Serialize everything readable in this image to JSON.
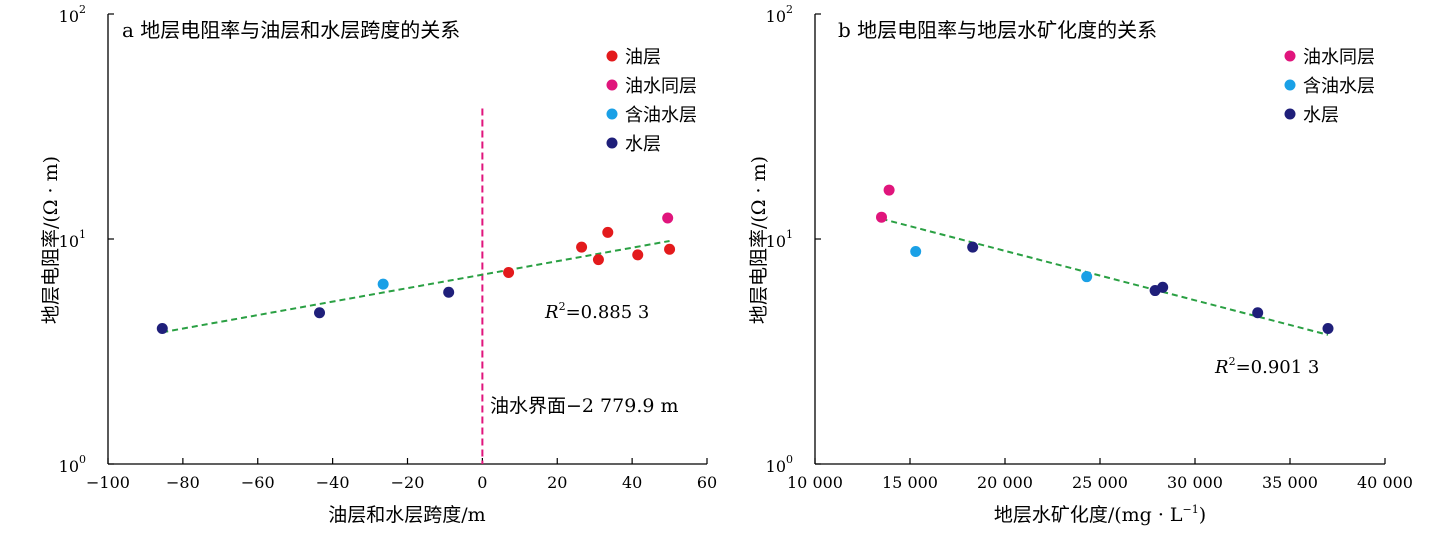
{
  "chart_data": [
    {
      "type": "scatter",
      "title": "a  地层电阻率与油层和水层跨度的关系",
      "xlabel": "油层和水层跨度/m",
      "ylabel": "地层电阻率/(Ω · m)",
      "x_scale": "linear",
      "y_scale": "log",
      "xlim": [
        -100,
        60
      ],
      "ylim": [
        1,
        100
      ],
      "x_ticks": [
        "−100",
        "−80",
        "−60",
        "−40",
        "−20",
        "0",
        "20",
        "40",
        "60"
      ],
      "y_ticks": [
        {
          "base": "10",
          "exp": "0"
        },
        {
          "base": "10",
          "exp": "1"
        },
        {
          "base": "10",
          "exp": "2"
        }
      ],
      "legend_position": "top-right",
      "series": [
        {
          "name": "油层",
          "color": "#e31a1c",
          "points": [
            [
              7,
              7.1
            ],
            [
              26.5,
              9.2
            ],
            [
              31,
              8.1
            ],
            [
              33.5,
              10.7
            ],
            [
              41.5,
              8.5
            ],
            [
              50,
              9.0
            ]
          ]
        },
        {
          "name": "油水同层",
          "color": "#e0157c",
          "points": [
            [
              49.5,
              12.4
            ]
          ]
        },
        {
          "name": "含油水层",
          "color": "#1aa0e6",
          "points": [
            [
              -26.5,
              6.3
            ]
          ]
        },
        {
          "name": "水层",
          "color": "#1f1f7a",
          "points": [
            [
              -85.5,
              4.0
            ],
            [
              -43.5,
              4.7
            ],
            [
              -9,
              5.8
            ]
          ]
        }
      ],
      "fit_line": {
        "from": [
          -85.5,
          3.85
        ],
        "to": [
          50,
          9.8
        ],
        "color": "#2aa043"
      },
      "r2_label": {
        "symbol": "R",
        "sup": "2",
        "value": "=0.885 3"
      },
      "vertical_line": {
        "x": 0,
        "y_top": 38,
        "color": "#e0157c",
        "label": "油水界面−2 779.9 m"
      }
    },
    {
      "type": "scatter",
      "title": "b  地层电阻率与地层水矿化度的关系",
      "xlabel_main": "地层水矿化度/(mg · L",
      "xlabel_sup": "−1",
      "xlabel_end": ")",
      "ylabel": "地层电阻率/(Ω · m)",
      "x_scale": "linear",
      "y_scale": "log",
      "xlim": [
        10000,
        40000
      ],
      "ylim": [
        1,
        100
      ],
      "x_ticks": [
        "10 000",
        "15 000",
        "20 000",
        "25 000",
        "30 000",
        "35 000",
        "40 000"
      ],
      "y_ticks": [
        {
          "base": "10",
          "exp": "0"
        },
        {
          "base": "10",
          "exp": "1"
        },
        {
          "base": "10",
          "exp": "2"
        }
      ],
      "legend_position": "top-right",
      "series": [
        {
          "name": "油水同层",
          "color": "#e0157c",
          "points": [
            [
              13500,
              12.5
            ],
            [
              13900,
              16.5
            ]
          ]
        },
        {
          "name": "含油水层",
          "color": "#1aa0e6",
          "points": [
            [
              15300,
              8.8
            ],
            [
              24300,
              6.8
            ]
          ]
        },
        {
          "name": "水层",
          "color": "#1f1f7a",
          "points": [
            [
              18300,
              9.2
            ],
            [
              27900,
              5.9
            ],
            [
              28300,
              6.1
            ],
            [
              33300,
              4.7
            ],
            [
              37000,
              4.0
            ]
          ]
        }
      ],
      "fit_line": {
        "from": [
          13500,
          12.3
        ],
        "to": [
          37000,
          3.75
        ],
        "color": "#2aa043"
      },
      "r2_label": {
        "symbol": "R",
        "sup": "2",
        "value": "=0.901 3"
      }
    }
  ]
}
